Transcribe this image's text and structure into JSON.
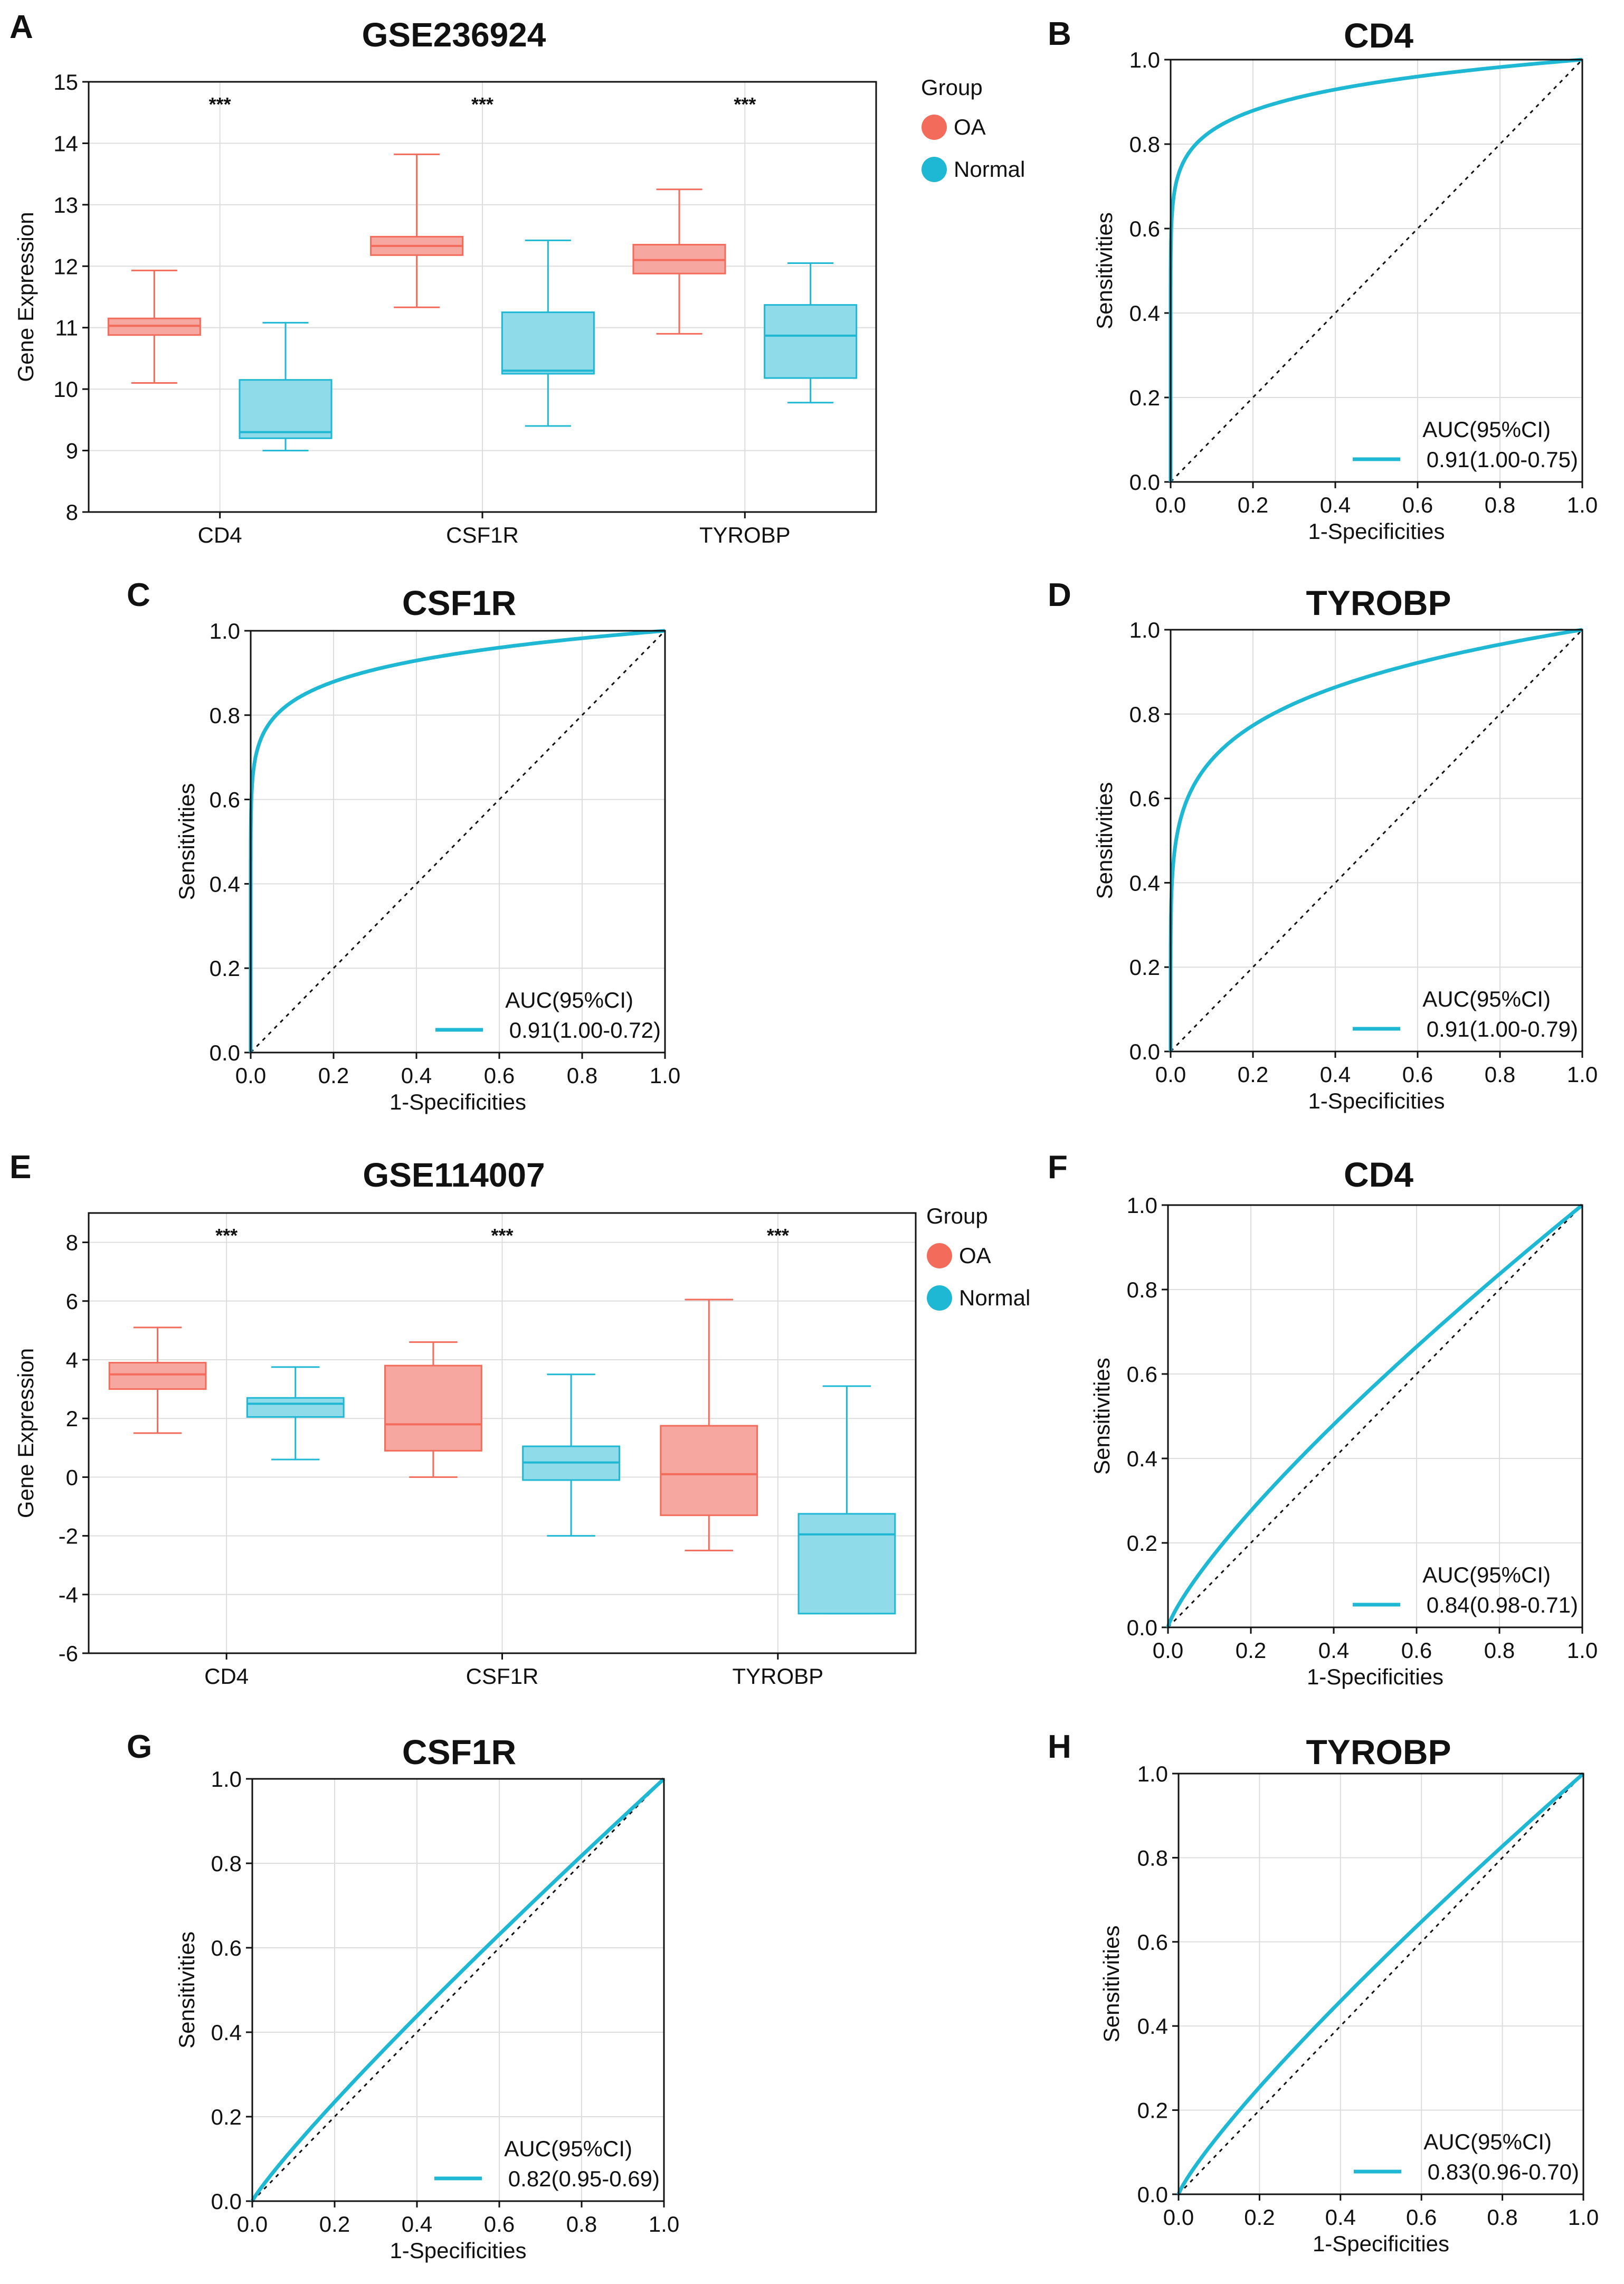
{
  "colors": {
    "oa": "#f36b5b",
    "oa_fill": "#f6a79f",
    "normal": "#1fb8d4",
    "normal_fill": "#8fdbe9",
    "roc": "#1fb8d4",
    "grid": "#dddddd"
  },
  "chart_data": [
    {
      "panel": "A",
      "type": "box",
      "title": "GSE236924",
      "ylabel": "Gene Expression",
      "ylim": [
        8,
        15
      ],
      "yticks": [
        "8",
        "9",
        "10",
        "11",
        "12",
        "13",
        "14",
        "15"
      ],
      "categories": [
        "CD4",
        "CSF1R",
        "TYROBP"
      ],
      "significance": [
        "***",
        "***",
        "***"
      ],
      "legend": {
        "title": "Group",
        "items": [
          "OA",
          "Normal"
        ]
      },
      "series": [
        {
          "name": "OA",
          "boxes": [
            {
              "min": 10.1,
              "q1": 10.88,
              "median": 11.03,
              "q3": 11.15,
              "max": 11.93
            },
            {
              "min": 11.33,
              "q1": 12.18,
              "median": 12.33,
              "q3": 12.48,
              "max": 13.82
            },
            {
              "min": 10.9,
              "q1": 11.88,
              "median": 12.1,
              "q3": 12.35,
              "max": 13.25
            }
          ]
        },
        {
          "name": "Normal",
          "boxes": [
            {
              "min": 9.0,
              "q1": 9.2,
              "median": 9.3,
              "q3": 10.15,
              "max": 11.08
            },
            {
              "min": 9.4,
              "q1": 10.25,
              "median": 10.3,
              "q3": 11.25,
              "max": 12.42
            },
            {
              "min": 9.78,
              "q1": 10.18,
              "median": 10.87,
              "q3": 11.37,
              "max": 12.05
            }
          ]
        }
      ]
    },
    {
      "panel": "B",
      "type": "line",
      "title": "CD4",
      "curve_k": 0.08,
      "auc_header": "AUC(95%CI)",
      "auc_text": "0.91(1.00-0.75)",
      "xlabel": "1-Specificities",
      "ylabel": "Sensitivities",
      "xlim": [
        0,
        1
      ],
      "ylim": [
        0,
        1
      ],
      "ticks": [
        "0.0",
        "0.2",
        "0.4",
        "0.6",
        "0.8",
        "1.0"
      ]
    },
    {
      "panel": "C",
      "type": "line",
      "title": "CSF1R",
      "curve_k": 0.08,
      "auc_header": "AUC(95%CI)",
      "auc_text": "0.91(1.00-0.72)",
      "xlabel": "1-Specificities",
      "ylabel": "Sensitivities",
      "xlim": [
        0,
        1
      ],
      "ylim": [
        0,
        1
      ],
      "ticks": [
        "0.0",
        "0.2",
        "0.4",
        "0.6",
        "0.8",
        "1.0"
      ]
    },
    {
      "panel": "D",
      "type": "line",
      "title": "TYROBP",
      "curve_k": 0.16,
      "auc_header": "AUC(95%CI)",
      "auc_text": "0.91(1.00-0.79)",
      "xlabel": "1-Specificities",
      "ylabel": "Sensitivities",
      "xlim": [
        0,
        1
      ],
      "ylim": [
        0,
        1
      ],
      "ticks": [
        "0.0",
        "0.2",
        "0.4",
        "0.6",
        "0.8",
        "1.0"
      ]
    },
    {
      "panel": "E",
      "type": "box",
      "title": "GSE114007",
      "ylabel": "Gene Expression",
      "ylim": [
        -6,
        9
      ],
      "yticks": [
        "-6",
        "-4",
        "-2",
        "0",
        "2",
        "4",
        "6",
        "8"
      ],
      "categories": [
        "CD4",
        "CSF1R",
        "TYROBP"
      ],
      "significance": [
        "***",
        "***",
        "***"
      ],
      "legend": {
        "title": "Group",
        "items": [
          "OA",
          "Normal"
        ]
      },
      "series": [
        {
          "name": "OA",
          "boxes": [
            {
              "min": 1.5,
              "q1": 3.0,
              "median": 3.5,
              "q3": 3.9,
              "max": 5.1
            },
            {
              "min": 0.0,
              "q1": 0.9,
              "median": 1.8,
              "q3": 3.8,
              "max": 4.6
            },
            {
              "min": -2.5,
              "q1": -1.3,
              "median": 0.1,
              "q3": 1.75,
              "max": 6.05
            }
          ]
        },
        {
          "name": "Normal",
          "boxes": [
            {
              "min": 0.6,
              "q1": 2.05,
              "median": 2.5,
              "q3": 2.7,
              "max": 3.75
            },
            {
              "min": -2.0,
              "q1": -0.1,
              "median": 0.5,
              "q3": 1.05,
              "max": 3.5
            },
            {
              "min": -4.65,
              "q1": -4.65,
              "median": -1.95,
              "q3": -1.25,
              "max": 3.1
            }
          ]
        }
      ]
    },
    {
      "panel": "F",
      "type": "line",
      "title": "CD4",
      "curve_k": 0.8,
      "auc_header": "AUC(95%CI)",
      "auc_text": "0.84(0.98-0.71)",
      "xlabel": "1-Specificities",
      "ylabel": "Sensitivities",
      "xlim": [
        0,
        1
      ],
      "ylim": [
        0,
        1
      ],
      "ticks": [
        "0.0",
        "0.2",
        "0.4",
        "0.6",
        "0.8",
        "1.0"
      ]
    },
    {
      "panel": "G",
      "type": "line",
      "title": "CSF1R",
      "curve_k": 0.9,
      "auc_header": "AUC(95%CI)",
      "auc_text": "0.82(0.95-0.69)",
      "xlabel": "1-Specificities",
      "ylabel": "Sensitivities",
      "xlim": [
        0,
        1
      ],
      "ylim": [
        0,
        1
      ],
      "ticks": [
        "0.0",
        "0.2",
        "0.4",
        "0.6",
        "0.8",
        "1.0"
      ]
    },
    {
      "panel": "H",
      "type": "line",
      "title": "TYROBP",
      "curve_k": 0.85,
      "auc_header": "AUC(95%CI)",
      "auc_text": "0.83(0.96-0.70)",
      "xlabel": "1-Specificities",
      "ylabel": "Sensitivities",
      "xlim": [
        0,
        1
      ],
      "ylim": [
        0,
        1
      ],
      "ticks": [
        "0.0",
        "0.2",
        "0.4",
        "0.6",
        "0.8",
        "1.0"
      ]
    }
  ]
}
